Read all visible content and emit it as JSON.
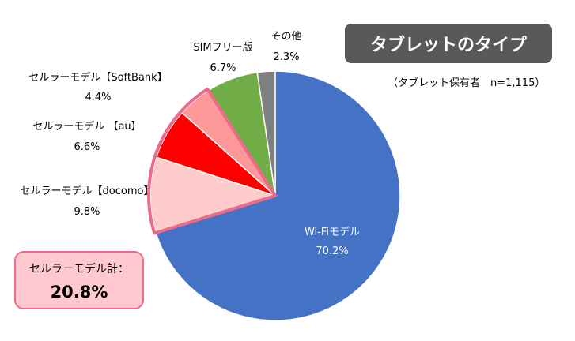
{
  "title": "タブレットのタイプ",
  "subtitle": "（タブレット保有者　n=1,115）",
  "callout": {
    "label": "セルラーモデル計：",
    "value": "20.8%"
  },
  "chart_data": {
    "type": "pie",
    "slices": [
      {
        "label": "Wi-Fiモデル",
        "value": 70.2,
        "value_label": "70.2%",
        "color": "#4472c4",
        "label_color": "#ffffff"
      },
      {
        "label": "セルラーモデル【docomo】",
        "value": 9.8,
        "value_label": "9.8%",
        "color": "#ffcccc",
        "highlight": true
      },
      {
        "label": "セルラーモデル 【au】",
        "value": 6.6,
        "value_label": "6.6%",
        "color": "#ff0000",
        "highlight": true
      },
      {
        "label": "セルラーモデル【SoftBank】",
        "value": 4.4,
        "value_label": "4.4%",
        "color": "#ff9999",
        "highlight": true
      },
      {
        "label": "SIMフリー版",
        "value": 6.7,
        "value_label": "6.7%",
        "color": "#70ad47"
      },
      {
        "label": "その他",
        "value": 2.3,
        "value_label": "2.3%",
        "color": "#7f7f7f"
      }
    ],
    "highlight_border_color": "#ec6b8c"
  }
}
